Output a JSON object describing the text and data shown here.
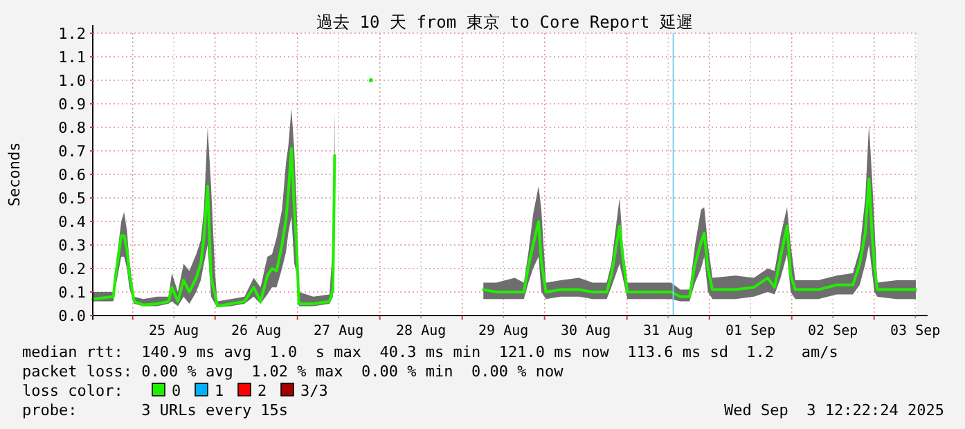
{
  "chart_data": {
    "type": "line",
    "title": "過去 10 天 from 東京 to Core Report 延遲",
    "ylabel": "Seconds",
    "legend_title": "loss color:",
    "legend": "bottom",
    "grid": true,
    "marker": "none",
    "line_style": "solid",
    "xlim": [
      "2025-08-24T12:22",
      "2025-09-03T12:22"
    ],
    "xticks": [
      {
        "value": "2025-08-25T12:00",
        "label": "25 Aug"
      },
      {
        "value": "2025-08-26T12:00",
        "label": "26 Aug"
      },
      {
        "value": "2025-08-27T12:00",
        "label": "27 Aug"
      },
      {
        "value": "2025-08-28T12:00",
        "label": "28 Aug"
      },
      {
        "value": "2025-08-29T12:00",
        "label": "29 Aug"
      },
      {
        "value": "2025-08-30T12:00",
        "label": "30 Aug"
      },
      {
        "value": "2025-08-31T12:00",
        "label": "31 Aug"
      },
      {
        "value": "2025-09-01T12:00",
        "label": "01 Sep"
      },
      {
        "value": "2025-09-02T12:00",
        "label": "02 Sep"
      },
      {
        "value": "2025-09-03T12:00",
        "label": "03 Sep"
      },
      {
        "value": "2025-08-25T00:00",
        "label": null
      },
      {
        "value": "2025-08-26T00:00",
        "label": null
      },
      {
        "value": "2025-08-27T00:00",
        "label": null
      },
      {
        "value": "2025-08-28T00:00",
        "label": null
      },
      {
        "value": "2025-08-29T00:00",
        "label": null
      },
      {
        "value": "2025-08-30T00:00",
        "label": null
      },
      {
        "value": "2025-08-31T00:00",
        "label": null
      },
      {
        "value": "2025-09-01T00:00",
        "label": null
      },
      {
        "value": "2025-09-02T00:00",
        "label": null
      },
      {
        "value": "2025-09-03T00:00",
        "label": null
      }
    ],
    "ylim": [
      0,
      1.2
    ],
    "yticks": [
      {
        "value": 0,
        "label": "0.0"
      },
      0.1,
      0.2,
      0.3,
      0.4,
      0.5,
      0.6,
      0.7,
      0.8,
      0.9,
      {
        "value": 1,
        "label": "1.0"
      },
      1.1,
      1.2
    ],
    "ref_lines": [
      {
        "axis": "x",
        "value": "2025-08-31T13:30",
        "color": "#80d0f0"
      }
    ],
    "series": [
      {
        "name": "0",
        "color": "#22ee00",
        "x": [
          "2025-08-24T12:22",
          "2025-08-24T18:22",
          "2025-08-24T19:00",
          "2025-08-24T20:40",
          "2025-08-24T21:30",
          "2025-08-24T22:20",
          "2025-08-24T23:00",
          "2025-08-25T00:25",
          "2025-08-25T03:05",
          "2025-08-25T07:05",
          "2025-08-25T10:25",
          "2025-08-25T11:25",
          "2025-08-25T13:10",
          "2025-08-25T14:50",
          "2025-08-25T16:30",
          "2025-08-25T18:30",
          "2025-08-25T19:50",
          "2025-08-25T20:45",
          "2025-08-25T21:50",
          "2025-08-25T22:50",
          "2025-08-26T00:00",
          "2025-08-26T00:40",
          "2025-08-26T04:35",
          "2025-08-26T08:35",
          "2025-08-26T11:15",
          "2025-08-26T13:15",
          "2025-08-26T15:15",
          "2025-08-26T16:35",
          "2025-08-26T17:55",
          "2025-08-26T19:30",
          "2025-08-26T20:40",
          "2025-08-26T21:20",
          "2025-08-26T22:15",
          "2025-08-26T23:05",
          "2025-08-26T23:45",
          "2025-08-27T00:25",
          "2025-08-27T04:40",
          "2025-08-27T09:20",
          "2025-08-27T10:20",
          "2025-08-27T10:50",
          "2025-08-27T15:00",
          "2025-08-27T21:25",
          "2025-08-28T12:00",
          "2025-08-29T06:10",
          "2025-08-29T09:55",
          "2025-08-29T15:17",
          "2025-08-29T17:58",
          "2025-08-29T19:18",
          "2025-08-29T20:39",
          "2025-08-29T22:15",
          "2025-08-29T23:03",
          "2025-08-30T00:24",
          "2025-08-30T04:41",
          "2025-08-30T10:03",
          "2025-08-30T14:04",
          "2025-08-30T18:06",
          "2025-08-30T19:26",
          "2025-08-30T21:51",
          "2025-08-30T22:47",
          "2025-08-31T00:07",
          "2025-08-31T06:09",
          "2025-08-31T12:52",
          "2025-08-31T15:33",
          "2025-08-31T18:14",
          "2025-08-31T19:50",
          "2025-08-31T21:35",
          "2025-08-31T22:31",
          "2025-08-31T23:35",
          "2025-09-01T00:55",
          "2025-09-01T07:37",
          "2025-09-01T12:59",
          "2025-09-01T17:01",
          "2025-09-01T19:01",
          "2025-09-01T20:46",
          "2025-09-01T22:38",
          "2025-09-01T23:42",
          "2025-09-02T01:03",
          "2025-09-02T07:45",
          "2025-09-02T13:07",
          "2025-09-02T17:49",
          "2025-09-02T19:49",
          "2025-09-02T21:26",
          "2025-09-02T22:30",
          "2025-09-02T23:26",
          "2025-09-03T00:07",
          "2025-09-03T00:55",
          "2025-09-03T06:33",
          "2025-09-03T12:10"
        ],
        "values": [
          0.07,
          0.08,
          0.17,
          0.34,
          0.34,
          0.28,
          0.18,
          0.06,
          0.045,
          0.05,
          0.06,
          0.12,
          0.06,
          0.15,
          0.1,
          0.16,
          0.22,
          0.33,
          0.55,
          0.16,
          0.09,
          0.04,
          0.05,
          0.06,
          0.12,
          0.06,
          0.17,
          0.2,
          0.19,
          0.3,
          0.41,
          0.52,
          0.71,
          0.45,
          0.3,
          0.05,
          0.05,
          0.06,
          0.11,
          0.68,
          null,
          1.0,
          null,
          0.11,
          0.1,
          0.1,
          0.1,
          0.21,
          0.3,
          0.4,
          0.23,
          0.1,
          0.11,
          0.11,
          0.1,
          0.1,
          0.17,
          0.38,
          0.25,
          0.1,
          0.1,
          0.1,
          0.08,
          0.08,
          0.22,
          0.31,
          0.35,
          0.2,
          0.11,
          0.11,
          0.12,
          0.16,
          0.12,
          0.25,
          0.38,
          0.17,
          0.11,
          0.11,
          0.13,
          0.13,
          0.22,
          0.35,
          0.58,
          0.34,
          0.21,
          0.11,
          0.11,
          0.11
        ],
        "lower": [
          0.06,
          0.06,
          0.12,
          0.25,
          0.25,
          0.2,
          0.12,
          0.05,
          0.04,
          0.04,
          0.05,
          0.06,
          0.04,
          0.08,
          0.05,
          0.1,
          0.15,
          0.22,
          0.3,
          0.08,
          0.05,
          0.035,
          0.04,
          0.05,
          0.08,
          0.05,
          0.09,
          0.12,
          0.12,
          0.2,
          0.27,
          0.35,
          0.42,
          0.22,
          0.18,
          0.04,
          0.04,
          0.05,
          0.08,
          0.4,
          null,
          null,
          null,
          0.07,
          0.07,
          0.07,
          0.07,
          0.14,
          0.2,
          0.25,
          0.1,
          0.07,
          0.08,
          0.08,
          0.07,
          0.07,
          0.12,
          0.22,
          0.16,
          0.07,
          0.07,
          0.07,
          0.06,
          0.06,
          0.14,
          0.2,
          0.25,
          0.1,
          0.07,
          0.07,
          0.08,
          0.1,
          0.09,
          0.16,
          0.26,
          0.1,
          0.07,
          0.07,
          0.09,
          0.09,
          0.13,
          0.22,
          0.3,
          0.18,
          0.1,
          0.08,
          0.07,
          0.07
        ],
        "upper": [
          0.1,
          0.1,
          0.2,
          0.4,
          0.44,
          0.36,
          0.24,
          0.08,
          0.07,
          0.08,
          0.08,
          0.18,
          0.1,
          0.22,
          0.19,
          0.26,
          0.32,
          0.45,
          0.8,
          0.55,
          0.18,
          0.06,
          0.07,
          0.08,
          0.16,
          0.12,
          0.25,
          0.26,
          0.33,
          0.45,
          0.65,
          0.72,
          0.88,
          0.7,
          0.47,
          0.1,
          0.08,
          0.09,
          0.3,
          0.87,
          null,
          null,
          null,
          0.14,
          0.14,
          0.16,
          0.14,
          0.27,
          0.43,
          0.55,
          0.45,
          0.14,
          0.15,
          0.16,
          0.14,
          0.14,
          0.22,
          0.5,
          0.3,
          0.14,
          0.14,
          0.14,
          0.11,
          0.11,
          0.3,
          0.45,
          0.46,
          0.3,
          0.16,
          0.17,
          0.16,
          0.2,
          0.19,
          0.34,
          0.46,
          0.3,
          0.15,
          0.15,
          0.17,
          0.18,
          0.28,
          0.5,
          0.81,
          0.58,
          0.38,
          0.14,
          0.15,
          0.15
        ]
      },
      {
        "name": "1",
        "color": "#00b0ff"
      },
      {
        "name": "2",
        "color": "#ff0000"
      },
      {
        "name": "3/3",
        "color": "#a00000"
      }
    ],
    "annotations": [
      "median rtt:  140.9 ms avg  1.0  s max  40.3 ms min  121.0 ms now  113.6 ms sd  1.2   am/s",
      "packet loss: 0.00 % avg  1.02 % max  0.00 % min  0.00 % now",
      "probe:       3 URLs every 15s",
      "Wed Sep  3 12:22:24 2025"
    ]
  }
}
